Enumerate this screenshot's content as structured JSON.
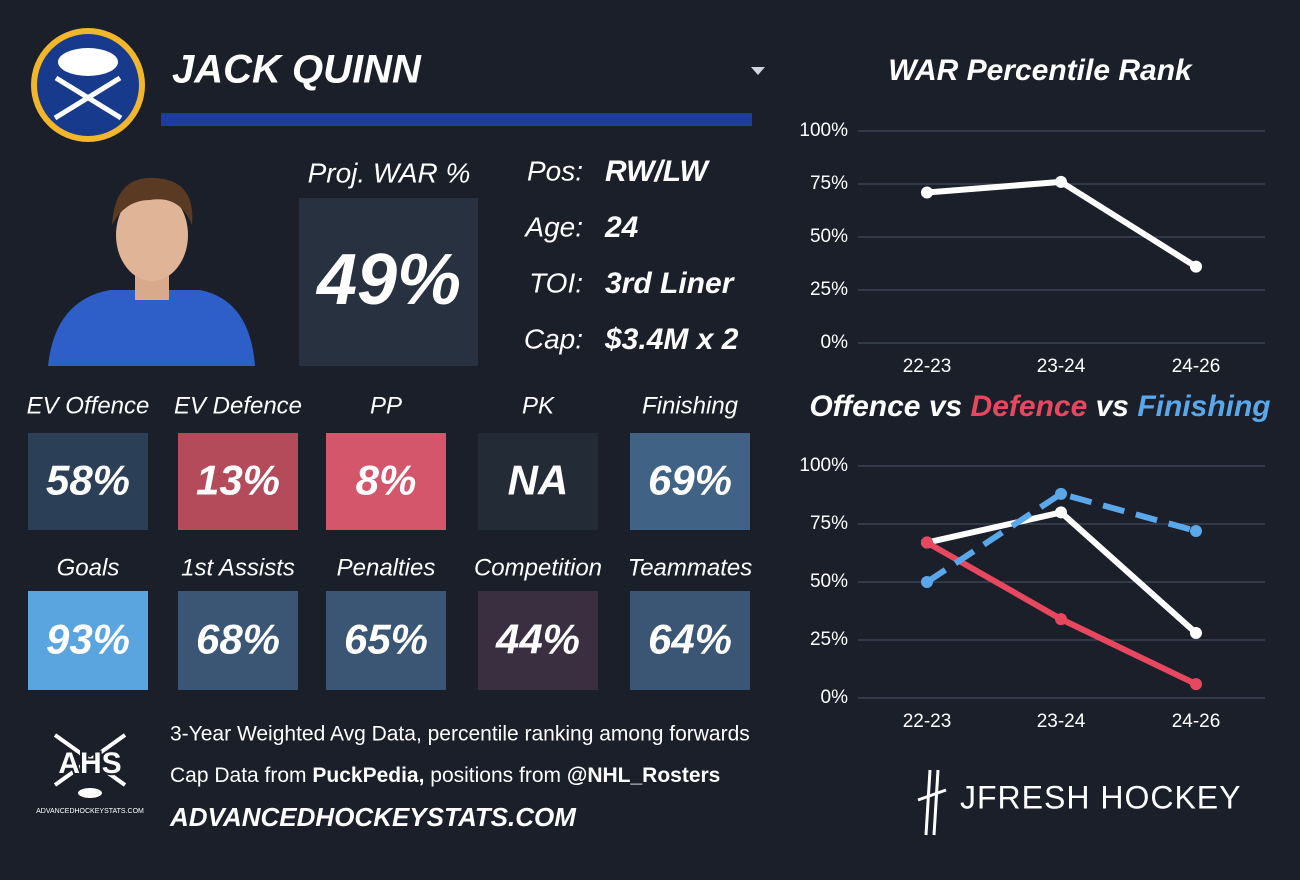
{
  "header": {
    "name": "JACK QUINN"
  },
  "projected": {
    "label": "Proj. WAR %",
    "value": "49%"
  },
  "info": [
    {
      "label": "Pos:",
      "value": "RW/LW"
    },
    {
      "label": "Age:",
      "value": "24"
    },
    {
      "label": "TOI:",
      "value": "3rd Liner"
    },
    {
      "label": "Cap:",
      "value": "$3.4M x 2"
    }
  ],
  "tiles": [
    {
      "label": "EV Offence",
      "value": "58%",
      "color": "#2b3f57"
    },
    {
      "label": "EV Defence",
      "value": "13%",
      "color": "#b34b5b"
    },
    {
      "label": "PP",
      "value": "8%",
      "color": "#d4566a"
    },
    {
      "label": "PK",
      "value": "NA",
      "color": "#232b37"
    },
    {
      "label": "Finishing",
      "value": "69%",
      "color": "#3f6285"
    },
    {
      "label": "Goals",
      "value": "93%",
      "color": "#5aa4e0"
    },
    {
      "label": "1st Assists",
      "value": "68%",
      "color": "#3a5674"
    },
    {
      "label": "Penalties",
      "value": "65%",
      "color": "#3a5674"
    },
    {
      "label": "Competition",
      "value": "44%",
      "color": "#3a2f40"
    },
    {
      "label": "Teammates",
      "value": "64%",
      "color": "#3a5674"
    }
  ],
  "footer": {
    "line1": "3-Year Weighted Avg Data, percentile ranking among forwards",
    "line2": [
      "Cap Data from ",
      "PuckPedia,",
      " positions from ",
      "@NHL_Rosters"
    ],
    "line3": "ADVANCEDHOCKEYSTATS.COM",
    "ahs_logo": "AHS",
    "ahs_url": "ADVANCEDHOCKEYSTATS.COM",
    "brand": "JFRESH HOCKEY"
  },
  "chart_data": [
    {
      "type": "line",
      "title": "WAR Percentile Rank",
      "categories": [
        "22-23",
        "23-24",
        "24-26"
      ],
      "values": [
        71,
        76,
        36
      ],
      "color": "#ffffff",
      "ylim": [
        0,
        100
      ],
      "yticks": [
        {
          "value": 0,
          "label": "0%"
        },
        {
          "value": 25,
          "label": "25%"
        },
        {
          "value": 50,
          "label": "50%"
        },
        {
          "value": 75,
          "label": "75%"
        },
        {
          "value": 100,
          "label": "100%"
        }
      ],
      "grid": true
    },
    {
      "type": "line",
      "title_separator": " vs ",
      "categories": [
        "22-23",
        "23-24",
        "24-26"
      ],
      "series": [
        {
          "name": "Offence",
          "color": "#ffffff",
          "values": [
            67,
            80,
            28
          ],
          "dashed": false
        },
        {
          "name": "Defence",
          "color": "#e8485f",
          "values": [
            67,
            34,
            6
          ],
          "dashed": false
        },
        {
          "name": "Finishing",
          "color": "#5aa7ea",
          "values": [
            50,
            88,
            72
          ],
          "dashed": true
        }
      ],
      "ylim": [
        0,
        100
      ],
      "yticks": [
        {
          "value": 0,
          "label": "0%"
        },
        {
          "value": 25,
          "label": "25%"
        },
        {
          "value": 50,
          "label": "50%"
        },
        {
          "value": 75,
          "label": "75%"
        },
        {
          "value": 100,
          "label": "100%"
        }
      ],
      "grid": true
    }
  ]
}
